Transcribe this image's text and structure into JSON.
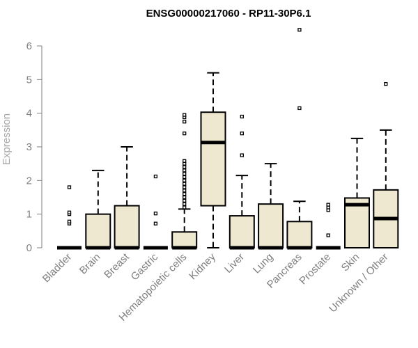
{
  "chart_data": {
    "type": "boxplot",
    "title": "ENSG00000217060 - RP11-30P6.1",
    "ylabel": "Expression",
    "xlabel": "",
    "ylim": [
      0,
      6.5
    ],
    "yticks": [
      0,
      1,
      2,
      3,
      4,
      5,
      6
    ],
    "grid": false,
    "box_color": "#EEE8D0",
    "stroke_color": "#000000",
    "axis_color": "#7f7f7f",
    "categories": [
      "Bladder",
      "Brain",
      "Breast",
      "Gastric",
      "Hematopoietic cells",
      "Kidney",
      "Liver",
      "Lung",
      "Pancreas",
      "Prostate",
      "Skin",
      "Unknown / Other"
    ],
    "boxes": [
      {
        "category": "Bladder",
        "min": 0,
        "q1": 0,
        "median": 0,
        "q3": 0,
        "max": 0,
        "outliers": [
          0.72,
          0.78,
          1.0,
          1.05,
          1.8
        ]
      },
      {
        "category": "Brain",
        "min": 0,
        "q1": 0,
        "median": 0,
        "q3": 1.0,
        "max": 2.3,
        "outliers": []
      },
      {
        "category": "Breast",
        "min": 0,
        "q1": 0,
        "median": 0,
        "q3": 1.25,
        "max": 3.0,
        "outliers": []
      },
      {
        "category": "Gastric",
        "min": 0,
        "q1": 0,
        "median": 0,
        "q3": 0,
        "max": 0,
        "outliers": [
          0.72,
          1.02,
          2.12
        ]
      },
      {
        "category": "Hematopoietic cells",
        "min": 0,
        "q1": 0,
        "median": 0,
        "q3": 0.47,
        "max": 1.15,
        "outliers": [
          1.2,
          1.3,
          1.4,
          1.5,
          1.6,
          1.7,
          1.8,
          1.9,
          2.0,
          2.1,
          2.2,
          2.3,
          2.4,
          2.5,
          2.58,
          3.4,
          3.75,
          3.88,
          3.95
        ]
      },
      {
        "category": "Kidney",
        "min": 0,
        "q1": 1.25,
        "median": 3.13,
        "q3": 4.03,
        "max": 5.2,
        "outliers": []
      },
      {
        "category": "Liver",
        "min": 0,
        "q1": 0,
        "median": 0,
        "q3": 0.95,
        "max": 2.15,
        "outliers": [
          2.75,
          3.4,
          3.9
        ]
      },
      {
        "category": "Lung",
        "min": 0,
        "q1": 0,
        "median": 0,
        "q3": 1.3,
        "max": 2.5,
        "outliers": []
      },
      {
        "category": "Pancreas",
        "min": 0,
        "q1": 0,
        "median": 0,
        "q3": 0.78,
        "max": 1.38,
        "outliers": [
          4.15,
          6.48
        ]
      },
      {
        "category": "Prostate",
        "min": 0,
        "q1": 0,
        "median": 0,
        "q3": 0,
        "max": 0,
        "outliers": [
          0.37,
          1.12,
          1.2,
          1.28
        ]
      },
      {
        "category": "Skin",
        "min": 0,
        "q1": 0,
        "median": 1.28,
        "q3": 1.48,
        "max": 3.25,
        "outliers": []
      },
      {
        "category": "Unknown / Other",
        "min": 0,
        "q1": 0,
        "median": 0.87,
        "q3": 1.72,
        "max": 3.5,
        "outliers": [
          4.87
        ]
      }
    ]
  }
}
